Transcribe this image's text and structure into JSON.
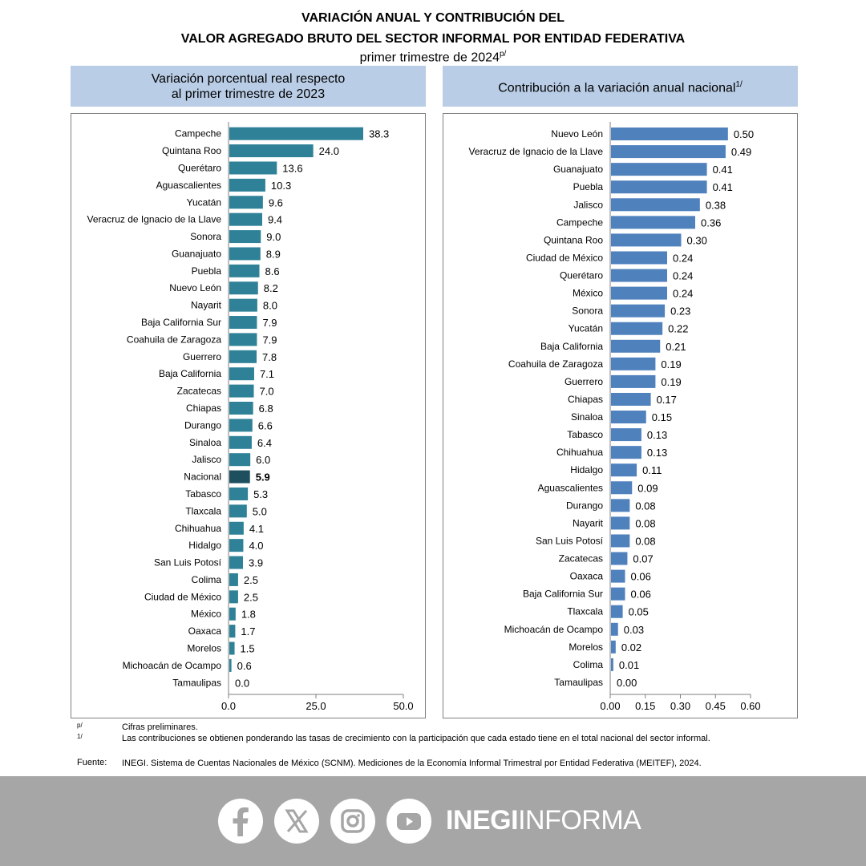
{
  "header": {
    "title_line1": "VARIACIÓN ANUAL Y CONTRIBUCIÓN DEL",
    "title_line2": "VALOR AGREGADO BRUTO DEL SECTOR INFORMAL POR ENTIDAD FEDERATIVA",
    "subtitle": "primer trimestre de 2024",
    "subtitle_mark": "p/"
  },
  "chart_data": [
    {
      "type": "bar",
      "orientation": "horizontal",
      "title_line1": "Variación porcentual real respecto",
      "title_line2": "al primer trimestre de 2023",
      "categories": [
        "Campeche",
        "Quintana Roo",
        "Querétaro",
        "Aguascalientes",
        "Yucatán",
        "Veracruz de Ignacio de la Llave",
        "Sonora",
        "Guanajuato",
        "Puebla",
        "Nuevo León",
        "Nayarit",
        "Baja California Sur",
        "Coahuila de Zaragoza",
        "Guerrero",
        "Baja California",
        "Zacatecas",
        "Chiapas",
        "Durango",
        "Sinaloa",
        "Jalisco",
        "Nacional",
        "Tabasco",
        "Tlaxcala",
        "Chihuahua",
        "Hidalgo",
        "San Luis Potosí",
        "Colima",
        "Ciudad de México",
        "México",
        "Oaxaca",
        "Morelos",
        "Michoacán de Ocampo",
        "Tamaulipas"
      ],
      "values": [
        38.3,
        24.0,
        13.6,
        10.3,
        9.6,
        9.4,
        9.0,
        8.9,
        8.6,
        8.2,
        8.0,
        7.9,
        7.9,
        7.8,
        7.1,
        7.0,
        6.8,
        6.6,
        6.4,
        6.0,
        5.9,
        5.3,
        5.0,
        4.1,
        4.0,
        3.9,
        2.5,
        2.5,
        1.8,
        1.7,
        1.5,
        0.6,
        0.0
      ],
      "value_labels": [
        "38.3",
        "24.0",
        "13.6",
        "10.3",
        "9.6",
        "9.4",
        "9.0",
        "8.9",
        "8.6",
        "8.2",
        "8.0",
        "7.9",
        "7.9",
        "7.8",
        "7.1",
        "7.0",
        "6.8",
        "6.6",
        "6.4",
        "6.0",
        "5.9",
        "5.3",
        "5.0",
        "4.1",
        "4.0",
        "3.9",
        "2.5",
        "2.5",
        "1.8",
        "1.7",
        "1.5",
        "0.6",
        "0.0"
      ],
      "highlight": "Nacional",
      "xlim": [
        0,
        50
      ],
      "xticks": [
        "0.0",
        "25.0",
        "50.0"
      ],
      "xtick_values": [
        0,
        25,
        50
      ],
      "bar_color": "#2e8197",
      "highlight_color": "#1d4f5e"
    },
    {
      "type": "bar",
      "orientation": "horizontal",
      "title": "Contribución a la variación anual nacional",
      "title_mark": "1/",
      "categories": [
        "Nuevo León",
        "Veracruz de Ignacio de la Llave",
        "Guanajuato",
        "Puebla",
        "Jalisco",
        "Campeche",
        "Quintana Roo",
        "Ciudad de México",
        "Querétaro",
        "México",
        "Sonora",
        "Yucatán",
        "Baja California",
        "Coahuila de Zaragoza",
        "Guerrero",
        "Chiapas",
        "Sinaloa",
        "Tabasco",
        "Chihuahua",
        "Hidalgo",
        "Aguascalientes",
        "Durango",
        "Nayarit",
        "San Luis Potosí",
        "Zacatecas",
        "Oaxaca",
        "Baja California Sur",
        "Tlaxcala",
        "Michoacán de Ocampo",
        "Morelos",
        "Colima",
        "Tamaulipas"
      ],
      "values": [
        0.5,
        0.49,
        0.41,
        0.41,
        0.38,
        0.36,
        0.3,
        0.24,
        0.24,
        0.24,
        0.23,
        0.22,
        0.21,
        0.19,
        0.19,
        0.17,
        0.15,
        0.13,
        0.13,
        0.11,
        0.09,
        0.08,
        0.08,
        0.08,
        0.07,
        0.06,
        0.06,
        0.05,
        0.03,
        0.02,
        0.01,
        0.0
      ],
      "value_labels": [
        "0.50",
        "0.49",
        "0.41",
        "0.41",
        "0.38",
        "0.36",
        "0.30",
        "0.24",
        "0.24",
        "0.24",
        "0.23",
        "0.22",
        "0.21",
        "0.19",
        "0.19",
        "0.17",
        "0.15",
        "0.13",
        "0.13",
        "0.11",
        "0.09",
        "0.08",
        "0.08",
        "0.08",
        "0.07",
        "0.06",
        "0.06",
        "0.05",
        "0.03",
        "0.02",
        "0.01",
        "0.00"
      ],
      "xlim": [
        0,
        0.6
      ],
      "xticks": [
        "0.00",
        "0.15",
        "0.30",
        "0.45",
        "0.60"
      ],
      "xtick_values": [
        0,
        0.15,
        0.3,
        0.45,
        0.6
      ],
      "bar_color": "#4f81bd"
    }
  ],
  "notes": [
    {
      "mark": "p/",
      "text": "Cifras preliminares."
    },
    {
      "mark": "1/",
      "text": "Las contribuciones se obtienen ponderando las tasas de crecimiento con la participación que cada estado tiene en el total nacional del sector informal."
    }
  ],
  "source": {
    "label": "Fuente:",
    "text": "INEGI. Sistema de Cuentas Nacionales de México (SCNM). Mediciones de la Economía Informal Trimestral por Entidad Federativa (MEITEF), 2024."
  },
  "footer": {
    "brand_bold": "INEGI",
    "brand_light": "INFORMA",
    "social": [
      "facebook-icon",
      "x-icon",
      "instagram-icon",
      "youtube-icon"
    ]
  }
}
